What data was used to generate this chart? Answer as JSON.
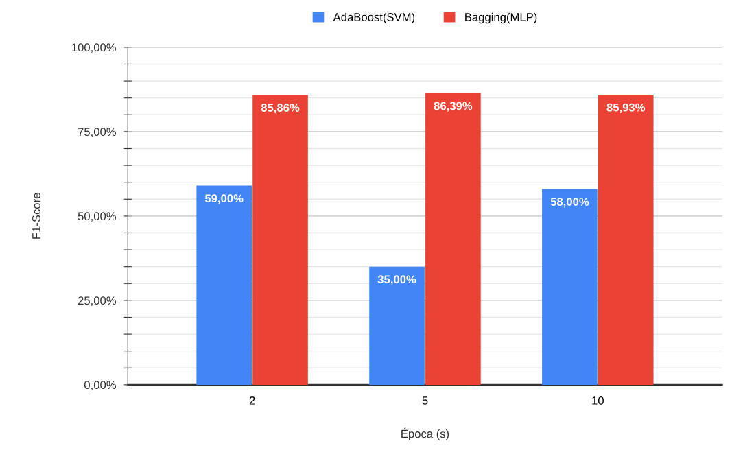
{
  "chart_data": {
    "type": "bar",
    "xlabel": "Época (s)",
    "ylabel": "F1-Score",
    "categories": [
      "2",
      "5",
      "10"
    ],
    "series": [
      {
        "name": "AdaBoost(SVM)",
        "color": "#4285f4",
        "values": [
          59.0,
          35.0,
          58.0
        ],
        "value_labels": [
          "59,00%",
          "35,00%",
          "58,00%"
        ]
      },
      {
        "name": "Bagging(MLP)",
        "color": "#ea4335",
        "values": [
          85.86,
          86.39,
          85.93
        ],
        "value_labels": [
          "85,86%",
          "86,39%",
          "85,93%"
        ]
      }
    ],
    "ylim": [
      0,
      100
    ],
    "yticks": [
      {
        "value": 0,
        "label": "0,00%"
      },
      {
        "value": 5,
        "label": null
      },
      {
        "value": 10,
        "label": null
      },
      {
        "value": 15,
        "label": null
      },
      {
        "value": 20,
        "label": null
      },
      {
        "value": 25,
        "label": "25,00%"
      },
      {
        "value": 30,
        "label": null
      },
      {
        "value": 35,
        "label": null
      },
      {
        "value": 40,
        "label": null
      },
      {
        "value": 45,
        "label": null
      },
      {
        "value": 50,
        "label": "50,00%"
      },
      {
        "value": 55,
        "label": null
      },
      {
        "value": 60,
        "label": null
      },
      {
        "value": 65,
        "label": null
      },
      {
        "value": 70,
        "label": null
      },
      {
        "value": 75,
        "label": "75,00%"
      },
      {
        "value": 80,
        "label": null
      },
      {
        "value": 85,
        "label": null
      },
      {
        "value": 90,
        "label": null
      },
      {
        "value": 95,
        "label": null
      },
      {
        "value": 100,
        "label": "100,00%"
      }
    ],
    "grid": "y",
    "legend": "top"
  }
}
